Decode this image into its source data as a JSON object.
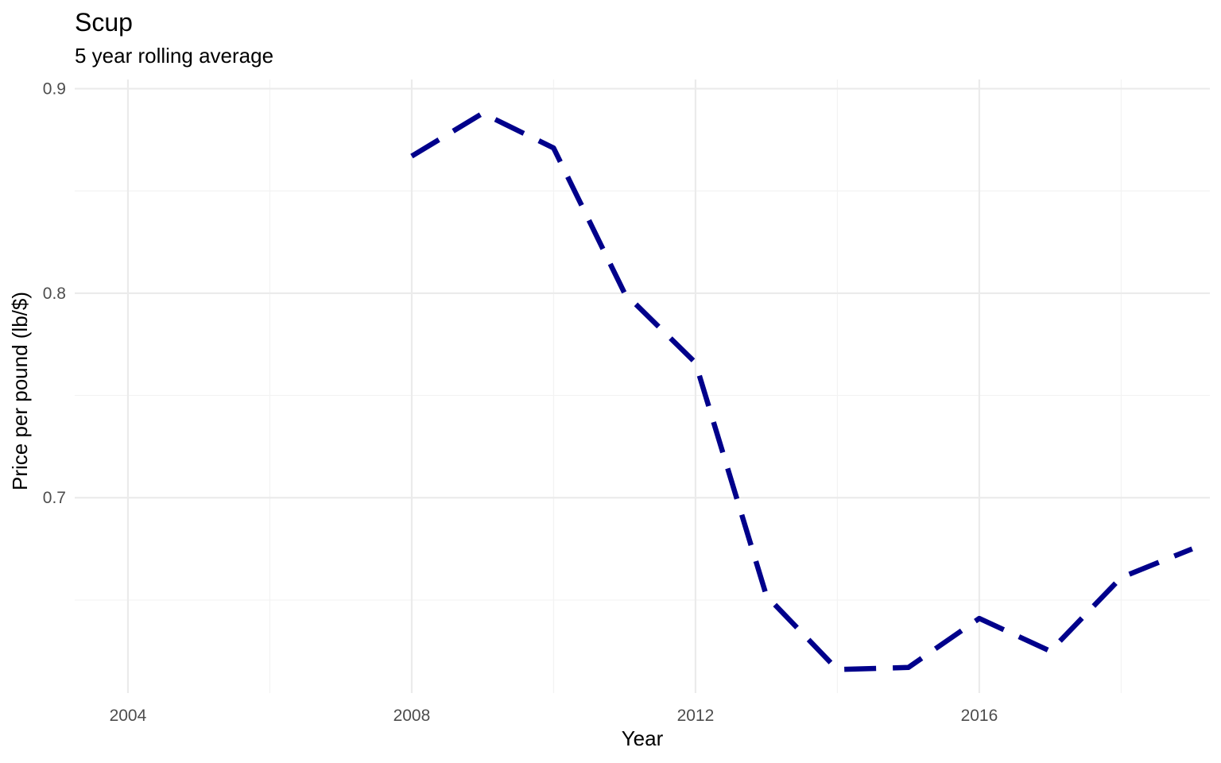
{
  "chart_data": {
    "type": "line",
    "title": "Scup",
    "subtitle": "5 year rolling average",
    "xlabel": "Year",
    "ylabel": "Price per pound (lb/$)",
    "xlim": [
      2003.25,
      2019.25
    ],
    "ylim": [
      0.6045,
      0.9045
    ],
    "x_ticks": [
      2004,
      2008,
      2012,
      2016
    ],
    "x_tick_labels": [
      "2004",
      "2008",
      "2012",
      "2016"
    ],
    "y_ticks": [
      0.7,
      0.8,
      0.9
    ],
    "y_tick_labels": [
      "0.7",
      "0.8",
      "0.9"
    ],
    "grid": true,
    "series": [
      {
        "color": "#00008b",
        "line_style": "dashed",
        "x": [
          2008,
          2009,
          2010,
          2011,
          2012,
          2013,
          2014,
          2015,
          2016,
          2017,
          2018,
          2019
        ],
        "values": [
          0.867,
          0.888,
          0.871,
          0.8,
          0.766,
          0.652,
          0.616,
          0.617,
          0.641,
          0.625,
          0.661,
          0.675
        ]
      }
    ]
  }
}
